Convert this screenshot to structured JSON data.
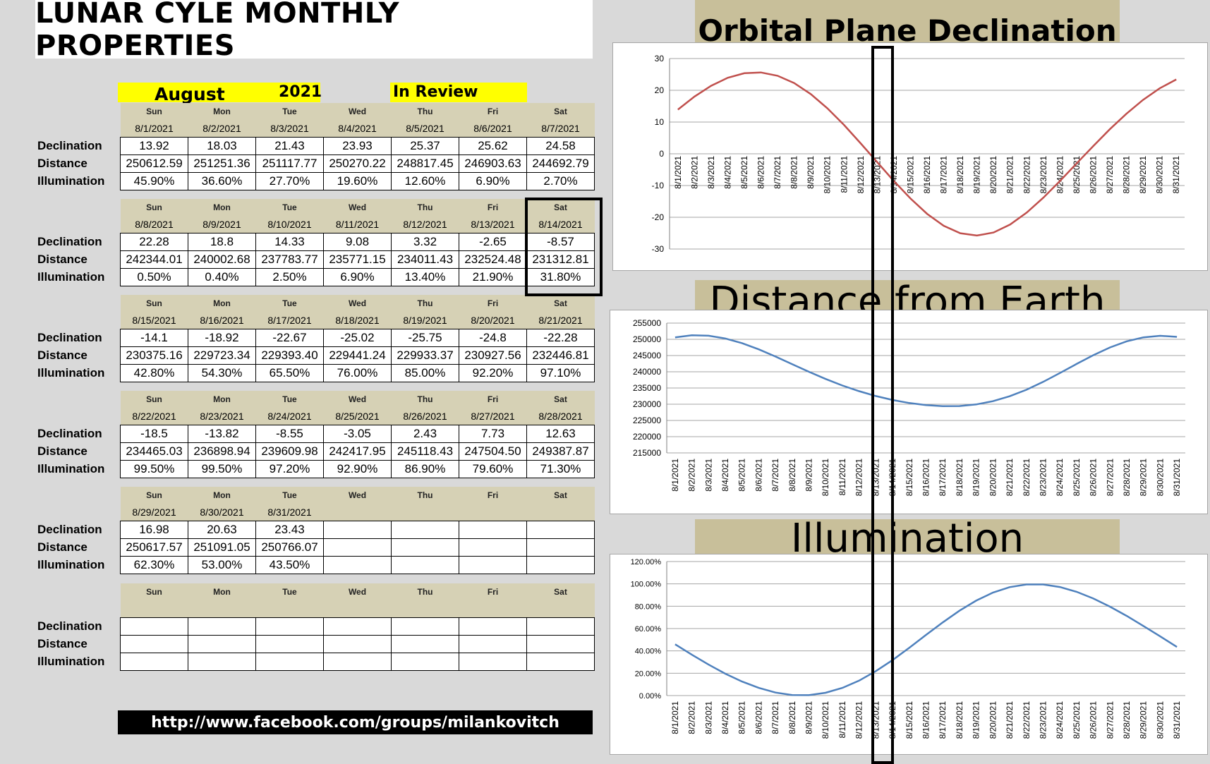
{
  "page_title": "LUNAR CYLE MONTHLY PROPERTIES",
  "header": {
    "month": "August",
    "year": "2021",
    "review": "In Review"
  },
  "row_labels": [
    "Declination",
    "Distance",
    "Illumination"
  ],
  "weeks": [
    {
      "days": [
        "Sun",
        "Mon",
        "Tue",
        "Wed",
        "Thu",
        "Fri",
        "Sat"
      ],
      "dates": [
        "8/1/2021",
        "8/2/2021",
        "8/3/2021",
        "8/4/2021",
        "8/5/2021",
        "8/6/2021",
        "8/7/2021"
      ],
      "declination": [
        "13.92",
        "18.03",
        "21.43",
        "23.93",
        "25.37",
        "25.62",
        "24.58"
      ],
      "distance": [
        "250612.59",
        "251251.36",
        "251117.77",
        "250270.22",
        "248817.45",
        "246903.63",
        "244692.79"
      ],
      "illumination": [
        "45.90%",
        "36.60%",
        "27.70%",
        "19.60%",
        "12.60%",
        "6.90%",
        "2.70%"
      ]
    },
    {
      "days": [
        "Sun",
        "Mon",
        "Tue",
        "Wed",
        "Thu",
        "Fri",
        "Sat"
      ],
      "dates": [
        "8/8/2021",
        "8/9/2021",
        "8/10/2021",
        "8/11/2021",
        "8/12/2021",
        "8/13/2021",
        "8/14/2021"
      ],
      "declination": [
        "22.28",
        "18.8",
        "14.33",
        "9.08",
        "3.32",
        "-2.65",
        "-8.57"
      ],
      "distance": [
        "242344.01",
        "240002.68",
        "237783.77",
        "235771.15",
        "234011.43",
        "232524.48",
        "231312.81"
      ],
      "illumination": [
        "0.50%",
        "0.40%",
        "2.50%",
        "6.90%",
        "13.40%",
        "21.90%",
        "31.80%"
      ]
    },
    {
      "days": [
        "Sun",
        "Mon",
        "Tue",
        "Wed",
        "Thu",
        "Fri",
        "Sat"
      ],
      "dates": [
        "8/15/2021",
        "8/16/2021",
        "8/17/2021",
        "8/18/2021",
        "8/19/2021",
        "8/20/2021",
        "8/21/2021"
      ],
      "declination": [
        "-14.1",
        "-18.92",
        "-22.67",
        "-25.02",
        "-25.75",
        "-24.8",
        "-22.28"
      ],
      "distance": [
        "230375.16",
        "229723.34",
        "229393.40",
        "229441.24",
        "229933.37",
        "230927.56",
        "232446.81"
      ],
      "illumination": [
        "42.80%",
        "54.30%",
        "65.50%",
        "76.00%",
        "85.00%",
        "92.20%",
        "97.10%"
      ]
    },
    {
      "days": [
        "Sun",
        "Mon",
        "Tue",
        "Wed",
        "Thu",
        "Fri",
        "Sat"
      ],
      "dates": [
        "8/22/2021",
        "8/23/2021",
        "8/24/2021",
        "8/25/2021",
        "8/26/2021",
        "8/27/2021",
        "8/28/2021"
      ],
      "declination": [
        "-18.5",
        "-13.82",
        "-8.55",
        "-3.05",
        "2.43",
        "7.73",
        "12.63"
      ],
      "distance": [
        "234465.03",
        "236898.94",
        "239609.98",
        "242417.95",
        "245118.43",
        "247504.50",
        "249387.87"
      ],
      "illumination": [
        "99.50%",
        "99.50%",
        "97.20%",
        "92.90%",
        "86.90%",
        "79.60%",
        "71.30%"
      ]
    },
    {
      "days": [
        "Sun",
        "Mon",
        "Tue",
        "Wed",
        "Thu",
        "Fri",
        "Sat"
      ],
      "dates": [
        "8/29/2021",
        "8/30/2021",
        "8/31/2021",
        "",
        "",
        "",
        ""
      ],
      "declination": [
        "16.98",
        "20.63",
        "23.43",
        "",
        "",
        "",
        ""
      ],
      "distance": [
        "250617.57",
        "251091.05",
        "250766.07",
        "",
        "",
        "",
        ""
      ],
      "illumination": [
        "62.30%",
        "53.00%",
        "43.50%",
        "",
        "",
        "",
        ""
      ]
    },
    {
      "days": [
        "Sun",
        "Mon",
        "Tue",
        "Wed",
        "Thu",
        "Fri",
        "Sat"
      ],
      "dates": [
        "",
        "",
        "",
        "",
        "",
        "",
        ""
      ],
      "declination": [
        "",
        "",
        "",
        "",
        "",
        "",
        ""
      ],
      "distance": [
        "",
        "",
        "",
        "",
        "",
        "",
        ""
      ],
      "illumination": [
        "",
        "",
        "",
        "",
        "",
        "",
        ""
      ]
    }
  ],
  "footer_link": "http://www.facebook.com/groups/milankovitch",
  "colors": {
    "declination_line": "#c0504d",
    "distance_line": "#4f81bd",
    "illumination_line": "#4f81bd",
    "title_band": "#c8bf9a",
    "table_header": "#d6d1b5",
    "highlight": "#ffff00"
  },
  "chart_data": [
    {
      "type": "line",
      "title": "Orbital Plane Declination",
      "x": [
        "8/1/2021",
        "8/2/2021",
        "8/3/2021",
        "8/4/2021",
        "8/5/2021",
        "8/6/2021",
        "8/7/2021",
        "8/8/2021",
        "8/9/2021",
        "8/10/2021",
        "8/11/2021",
        "8/12/2021",
        "8/13/2021",
        "8/14/2021",
        "8/15/2021",
        "8/16/2021",
        "8/17/2021",
        "8/18/2021",
        "8/19/2021",
        "8/20/2021",
        "8/21/2021",
        "8/22/2021",
        "8/23/2021",
        "8/24/2021",
        "8/25/2021",
        "8/26/2021",
        "8/27/2021",
        "8/28/2021",
        "8/29/2021",
        "8/30/2021",
        "8/31/2021"
      ],
      "values": [
        13.92,
        18.03,
        21.43,
        23.93,
        25.37,
        25.62,
        24.58,
        22.28,
        18.8,
        14.33,
        9.08,
        3.32,
        -2.65,
        -8.57,
        -14.1,
        -18.92,
        -22.67,
        -25.02,
        -25.75,
        -24.8,
        -22.28,
        -18.5,
        -13.82,
        -8.55,
        -3.05,
        2.43,
        7.73,
        12.63,
        16.98,
        20.63,
        23.43
      ],
      "ylim": [
        -30,
        30
      ],
      "yticks": [
        30,
        20,
        10,
        0,
        -10,
        -20,
        -30
      ],
      "ytick_labels": [
        "30",
        "20",
        "10",
        "0",
        "-10",
        "-20",
        "-30"
      ],
      "grid": true
    },
    {
      "type": "line",
      "title": "Distance from Earth",
      "x": [
        "8/1/2021",
        "8/2/2021",
        "8/3/2021",
        "8/4/2021",
        "8/5/2021",
        "8/6/2021",
        "8/7/2021",
        "8/8/2021",
        "8/9/2021",
        "8/10/2021",
        "8/11/2021",
        "8/12/2021",
        "8/13/2021",
        "8/14/2021",
        "8/15/2021",
        "8/16/2021",
        "8/17/2021",
        "8/18/2021",
        "8/19/2021",
        "8/20/2021",
        "8/21/2021",
        "8/22/2021",
        "8/23/2021",
        "8/24/2021",
        "8/25/2021",
        "8/26/2021",
        "8/27/2021",
        "8/28/2021",
        "8/29/2021",
        "8/30/2021",
        "8/31/2021"
      ],
      "values": [
        250612.59,
        251251.36,
        251117.77,
        250270.22,
        248817.45,
        246903.63,
        244692.79,
        242344.01,
        240002.68,
        237783.77,
        235771.15,
        234011.43,
        232524.48,
        231312.81,
        230375.16,
        229723.34,
        229393.4,
        229441.24,
        229933.37,
        230927.56,
        232446.81,
        234465.03,
        236898.94,
        239609.98,
        242417.95,
        245118.43,
        247504.5,
        249387.87,
        250617.57,
        251091.05,
        250766.07
      ],
      "ylim": [
        215000,
        255000
      ],
      "yticks": [
        255000,
        250000,
        245000,
        240000,
        235000,
        230000,
        225000,
        220000,
        215000
      ],
      "ytick_labels": [
        "255000",
        "250000",
        "245000",
        "240000",
        "235000",
        "230000",
        "225000",
        "220000",
        "215000"
      ],
      "grid": true
    },
    {
      "type": "line",
      "title": "Illumination",
      "x": [
        "8/1/2021",
        "8/2/2021",
        "8/3/2021",
        "8/4/2021",
        "8/5/2021",
        "8/6/2021",
        "8/7/2021",
        "8/8/2021",
        "8/9/2021",
        "8/10/2021",
        "8/11/2021",
        "8/12/2021",
        "8/13/2021",
        "8/14/2021",
        "8/15/2021",
        "8/16/2021",
        "8/17/2021",
        "8/18/2021",
        "8/19/2021",
        "8/20/2021",
        "8/21/2021",
        "8/22/2021",
        "8/23/2021",
        "8/24/2021",
        "8/25/2021",
        "8/26/2021",
        "8/27/2021",
        "8/28/2021",
        "8/29/2021",
        "8/30/2021",
        "8/31/2021"
      ],
      "values": [
        45.9,
        36.6,
        27.7,
        19.6,
        12.6,
        6.9,
        2.7,
        0.5,
        0.4,
        2.5,
        6.9,
        13.4,
        21.9,
        31.8,
        42.8,
        54.3,
        65.5,
        76.0,
        85.0,
        92.2,
        97.1,
        99.5,
        99.5,
        97.2,
        92.9,
        86.9,
        79.6,
        71.3,
        62.3,
        53.0,
        43.5
      ],
      "ylim": [
        0,
        120
      ],
      "yticks": [
        120,
        100,
        80,
        60,
        40,
        20,
        0
      ],
      "ytick_labels": [
        "120.00%",
        "100.00%",
        "80.00%",
        "60.00%",
        "40.00%",
        "20.00%",
        "0.00%"
      ],
      "grid": true
    }
  ]
}
